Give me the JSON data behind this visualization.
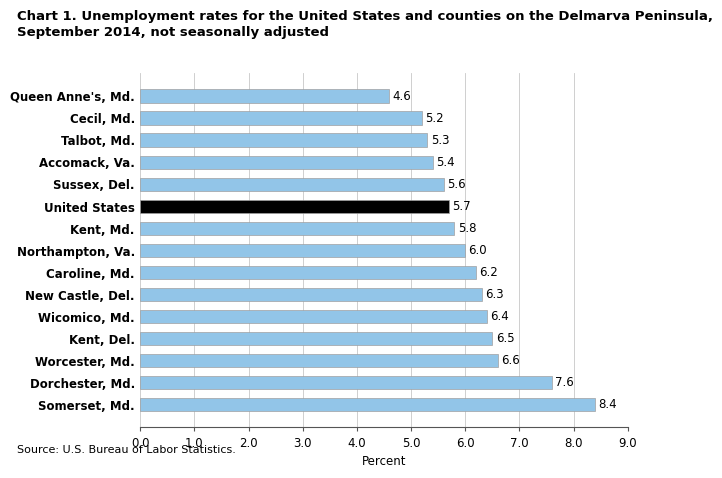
{
  "title_line1": "Chart 1. Unemployment rates for the United States and counties on the Delmarva Peninsula,",
  "title_line2": "September 2014, not seasonally adjusted",
  "categories": [
    "Queen Anne's, Md.",
    "Cecil, Md.",
    "Talbot, Md.",
    "Accomack, Va.",
    "Sussex, Del.",
    "United States",
    "Kent, Md.",
    "Northampton, Va.",
    "Caroline, Md.",
    "New Castle, Del.",
    "Wicomico, Md.",
    "Kent, Del.",
    "Worcester, Md.",
    "Dorchester, Md.",
    "Somerset, Md."
  ],
  "values": [
    4.6,
    5.2,
    5.3,
    5.4,
    5.6,
    5.7,
    5.8,
    6.0,
    6.2,
    6.3,
    6.4,
    6.5,
    6.6,
    7.6,
    8.4
  ],
  "bar_colors": [
    "#92c5e8",
    "#92c5e8",
    "#92c5e8",
    "#92c5e8",
    "#92c5e8",
    "#000000",
    "#92c5e8",
    "#92c5e8",
    "#92c5e8",
    "#92c5e8",
    "#92c5e8",
    "#92c5e8",
    "#92c5e8",
    "#92c5e8",
    "#92c5e8"
  ],
  "bar_edge_color": "#a0a0a0",
  "xlabel": "Percent",
  "xlim": [
    0,
    9.0
  ],
  "xticks": [
    0.0,
    1.0,
    2.0,
    3.0,
    4.0,
    5.0,
    6.0,
    7.0,
    8.0,
    9.0
  ],
  "source": "Source: U.S. Bureau of Labor Statistics.",
  "title_fontsize": 9.5,
  "label_fontsize": 8.5,
  "tick_fontsize": 8.5,
  "source_fontsize": 8.0,
  "bar_height": 0.6
}
